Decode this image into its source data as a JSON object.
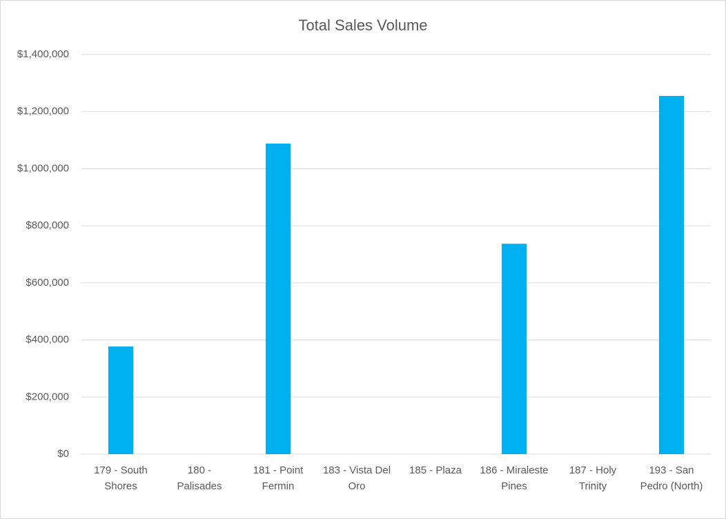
{
  "chart_data": {
    "type": "bar",
    "title": "Total Sales Volume",
    "categories": [
      "179 - South Shores",
      "180 - Palisades",
      "181 - Point Fermin",
      "183 - Vista Del Oro",
      "185 - Plaza",
      "186 - Miraleste Pines",
      "187 - Holy Trinity",
      "193 - San Pedro (North)"
    ],
    "values": [
      377000,
      0,
      1088000,
      0,
      0,
      737000,
      0,
      1255000
    ],
    "color": "#00b0f0",
    "ylim": [
      0,
      1400000
    ],
    "yticks": [
      {
        "value": 0,
        "label": "$0"
      },
      {
        "value": 200000,
        "label": "$200,000"
      },
      {
        "value": 400000,
        "label": "$400,000"
      },
      {
        "value": 600000,
        "label": "$600,000"
      },
      {
        "value": 800000,
        "label": "$800,000"
      },
      {
        "value": 1000000,
        "label": "$1,000,000"
      },
      {
        "value": 1200000,
        "label": "$1,200,000"
      },
      {
        "value": 1400000,
        "label": "$1,400,000"
      }
    ],
    "grid": true
  }
}
